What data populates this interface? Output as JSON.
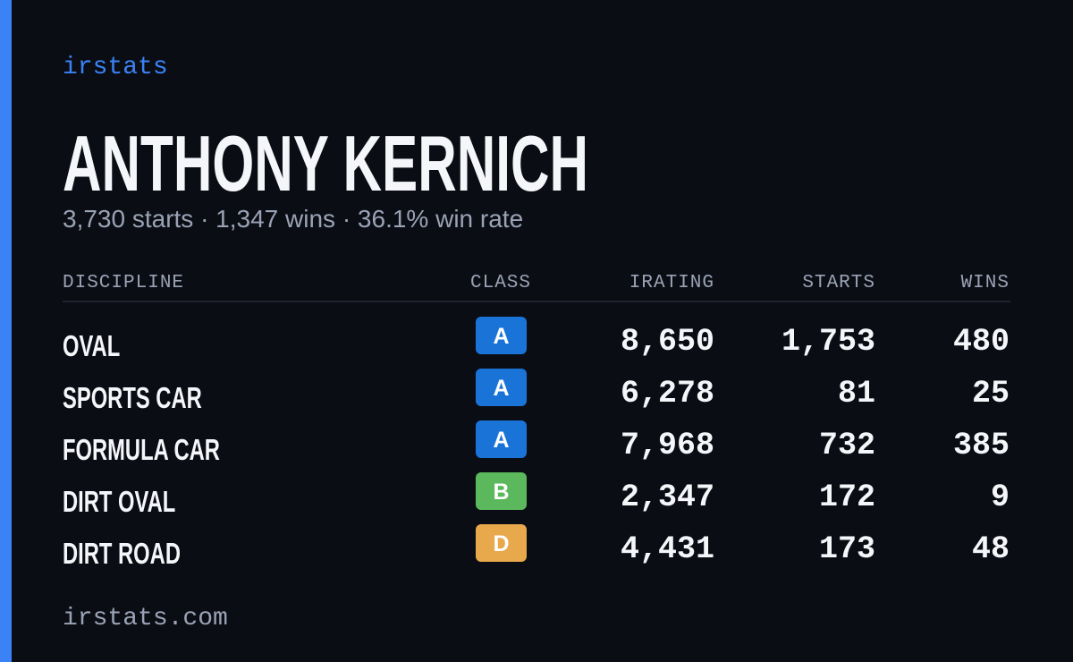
{
  "brand": "irstats",
  "player": {
    "name": "ANTHONY KERNICH",
    "summary": "3,730 starts · 1,347 wins · 36.1% win rate"
  },
  "table": {
    "headers": [
      "DISCIPLINE",
      "CLASS",
      "IRATING",
      "STARTS",
      "WINS"
    ],
    "rows": [
      [
        "OVAL",
        "A",
        "8,650",
        "1,753",
        "480"
      ],
      [
        "SPORTS CAR",
        "A",
        "6,278",
        "81",
        "25"
      ],
      [
        "FORMULA CAR",
        "A",
        "7,968",
        "732",
        "385"
      ],
      [
        "DIRT OVAL",
        "B",
        "2,347",
        "172",
        "9"
      ],
      [
        "DIRT ROAD",
        "D",
        "4,431",
        "173",
        "48"
      ]
    ]
  },
  "class_colors": {
    "A": "#1a74d8",
    "B": "#5cb85c",
    "D": "#e8a84c"
  },
  "footer": "irstats.com"
}
